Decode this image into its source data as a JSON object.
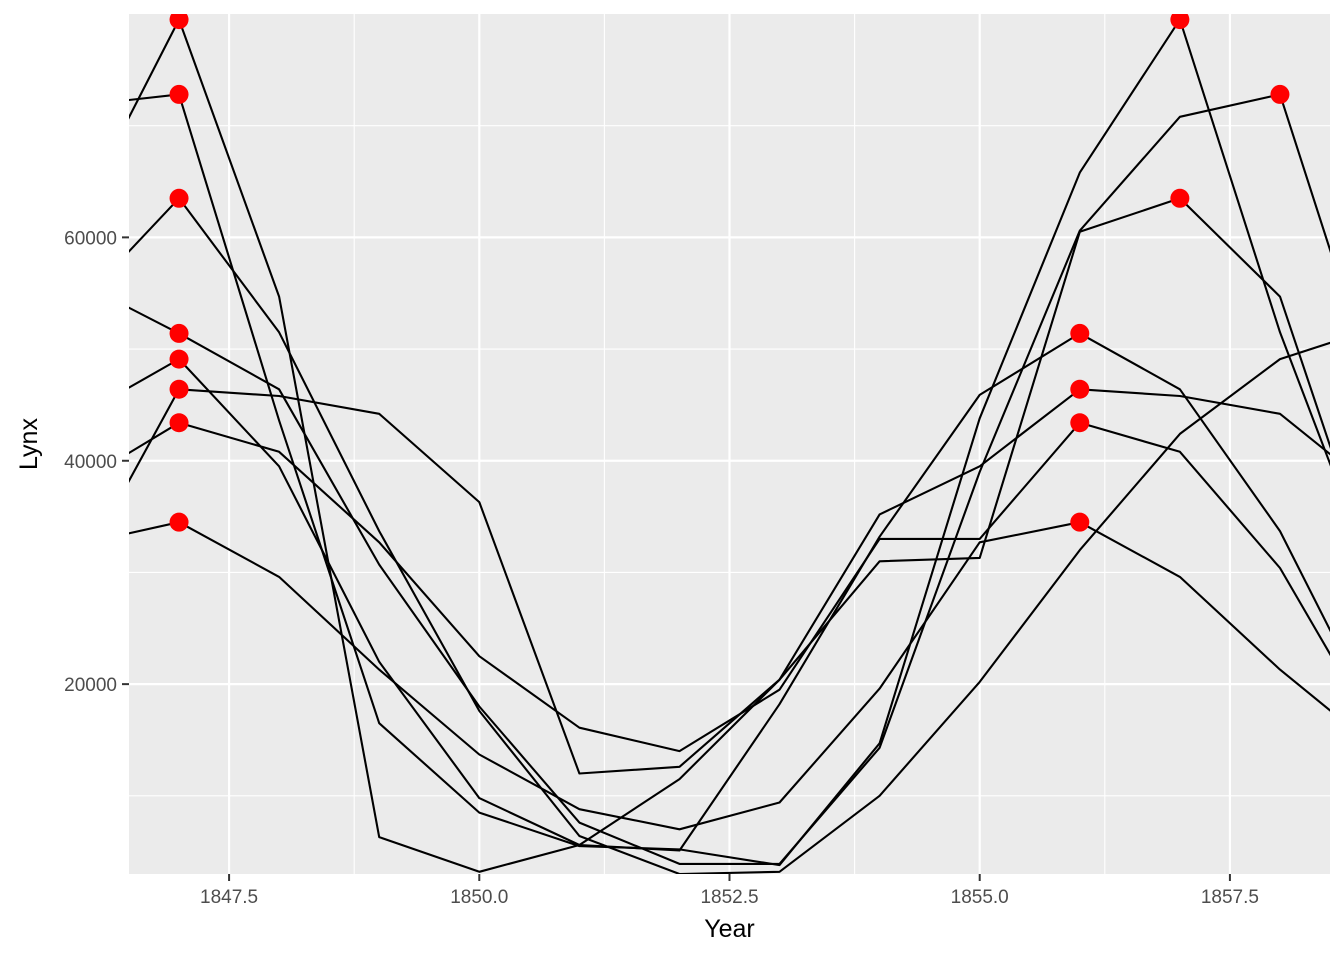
{
  "chart_data": {
    "type": "line",
    "xlabel": "Year",
    "ylabel": "Lynx",
    "xlim": [
      1846.5,
      1858.5
    ],
    "ylim": [
      3000,
      80000
    ],
    "x_ticks": [
      1847.5,
      1850.0,
      1852.5,
      1855.0,
      1857.5
    ],
    "x_tick_labels": [
      "1847.5",
      "1850.0",
      "1852.5",
      "1855.0",
      "1857.5"
    ],
    "y_ticks": [
      20000,
      40000,
      60000
    ],
    "y_tick_labels": [
      "20000",
      "40000",
      "60000"
    ],
    "grid": true,
    "background": "#ebebeb",
    "grid_color": "#ffffff",
    "line_color": "#000000",
    "point_color": "#ff0000",
    "series": [
      {
        "x": [
          1846,
          1847,
          1848,
          1849,
          1850,
          1851,
          1852,
          1853,
          1854,
          1855,
          1856,
          1857,
          1858,
          1859
        ],
        "y": [
          62000,
          79500,
          54700,
          6300,
          3200,
          5600,
          11500,
          20400,
          31000,
          31300,
          60500,
          63500,
          54700,
          28000
        ]
      },
      {
        "x": [
          1846,
          1847,
          1848,
          1849,
          1850,
          1851,
          1852,
          1853,
          1854,
          1855,
          1856,
          1857,
          1858,
          1859
        ],
        "y": [
          71800,
          72800,
          43600,
          16500,
          8500,
          5500,
          5200,
          3800,
          14700,
          43800,
          65800,
          79500,
          51500,
          28000
        ]
      },
      {
        "x": [
          1846,
          1847,
          1848,
          1849,
          1850,
          1851,
          1852,
          1853,
          1854,
          1855,
          1856,
          1857,
          1858,
          1859
        ],
        "y": [
          54000,
          63500,
          51500,
          33700,
          17600,
          6400,
          3000,
          3200,
          10000,
          20200,
          32000,
          42400,
          49100,
          52000
        ]
      },
      {
        "x": [
          1846,
          1847,
          1848,
          1849,
          1850,
          1851,
          1852,
          1853,
          1854,
          1855,
          1856,
          1857,
          1858,
          1859
        ],
        "y": [
          56000,
          51400,
          46400,
          30700,
          18000,
          7600,
          3900,
          3900,
          14300,
          39000,
          60600,
          70800,
          72800,
          45000
        ]
      },
      {
        "x": [
          1846,
          1847,
          1848,
          1849,
          1850,
          1851,
          1852,
          1853,
          1854,
          1855,
          1856,
          1857,
          1858,
          1859
        ],
        "y": [
          44000,
          49100,
          39500,
          22000,
          9800,
          5600,
          5100,
          18200,
          33200,
          45900,
          51400,
          46400,
          33700,
          16000
        ]
      },
      {
        "x": [
          1846,
          1847,
          1848,
          1849,
          1850,
          1851,
          1852,
          1853,
          1854,
          1855,
          1856,
          1857,
          1858,
          1859
        ],
        "y": [
          30000,
          46400,
          45800,
          44200,
          36300,
          12000,
          12600,
          20400,
          35200,
          39500,
          46400,
          45800,
          44200,
          37000
        ]
      },
      {
        "x": [
          1846,
          1847,
          1848,
          1849,
          1850,
          1851,
          1852,
          1853,
          1854,
          1855,
          1856,
          1857,
          1858,
          1859
        ],
        "y": [
          38000,
          43400,
          40800,
          32700,
          22500,
          16100,
          14000,
          19500,
          33000,
          33000,
          43400,
          40800,
          30400,
          15000
        ]
      },
      {
        "x": [
          1846,
          1847,
          1848,
          1849,
          1850,
          1851,
          1852,
          1853,
          1854,
          1855,
          1856,
          1857,
          1858,
          1859
        ],
        "y": [
          32500,
          34500,
          29600,
          21300,
          13700,
          8800,
          7000,
          9400,
          19600,
          32700,
          34500,
          29600,
          21300,
          14000
        ]
      }
    ],
    "points": [
      {
        "x": 1847,
        "y": 79500
      },
      {
        "x": 1847,
        "y": 72800
      },
      {
        "x": 1847,
        "y": 63500
      },
      {
        "x": 1847,
        "y": 51400
      },
      {
        "x": 1847,
        "y": 49100
      },
      {
        "x": 1847,
        "y": 46400
      },
      {
        "x": 1847,
        "y": 43400
      },
      {
        "x": 1847,
        "y": 34500
      },
      {
        "x": 1856,
        "y": 51400
      },
      {
        "x": 1856,
        "y": 46400
      },
      {
        "x": 1856,
        "y": 43400
      },
      {
        "x": 1856,
        "y": 34500
      },
      {
        "x": 1857,
        "y": 79500
      },
      {
        "x": 1857,
        "y": 63500
      },
      {
        "x": 1858,
        "y": 72800
      }
    ]
  }
}
